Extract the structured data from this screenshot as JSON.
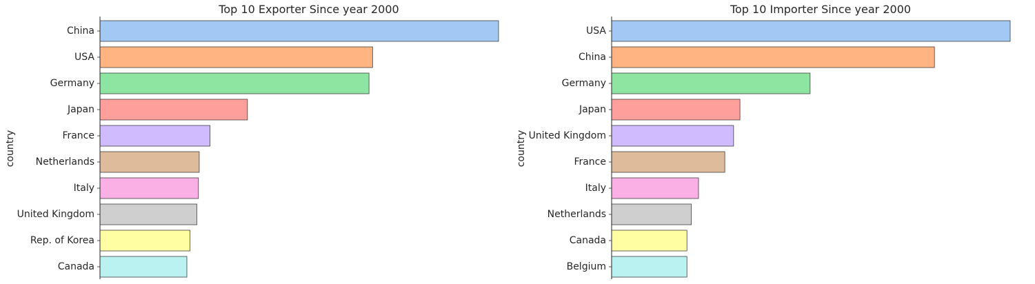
{
  "chart_data": [
    {
      "type": "bar",
      "orientation": "horizontal",
      "title": "Top 10 Exporter Since year 2000",
      "ylabel": "country",
      "xlabel": "",
      "categories": [
        "China",
        "USA",
        "Germany",
        "Japan",
        "France",
        "Netherlands",
        "Italy",
        "United Kingdom",
        "Rep. of Korea",
        "Canada"
      ],
      "values": [
        100,
        68.4,
        67.5,
        37.0,
        27.6,
        24.9,
        24.7,
        24.3,
        22.6,
        21.8
      ],
      "value_note": "relative scale (no x-axis ticks shown), largest bar = 100",
      "xlim": [
        0,
        100
      ],
      "colors": [
        "#a1c9f4",
        "#ffb482",
        "#8de5a1",
        "#ff9f9b",
        "#d0bbff",
        "#debb9b",
        "#fab0e4",
        "#cfcfcf",
        "#fffea3",
        "#b9f2f0"
      ]
    },
    {
      "type": "bar",
      "orientation": "horizontal",
      "title": "Top 10 Importer Since year 2000",
      "ylabel": "country",
      "xlabel": "",
      "categories": [
        "USA",
        "China",
        "Germany",
        "Japan",
        "United Kingdom",
        "France",
        "Italy",
        "Netherlands",
        "Canada",
        "Belgium"
      ],
      "values": [
        100,
        81.0,
        49.8,
        32.2,
        30.6,
        28.4,
        21.8,
        20.0,
        18.9,
        18.9
      ],
      "value_note": "relative scale (no x-axis ticks shown), largest bar = 100",
      "xlim": [
        0,
        100
      ],
      "colors": [
        "#a1c9f4",
        "#ffb482",
        "#8de5a1",
        "#ff9f9b",
        "#d0bbff",
        "#debb9b",
        "#fab0e4",
        "#cfcfcf",
        "#fffea3",
        "#b9f2f0"
      ]
    }
  ],
  "style": {
    "bar_edge_color": "#3f3f3f",
    "axis_color": "#262626"
  }
}
